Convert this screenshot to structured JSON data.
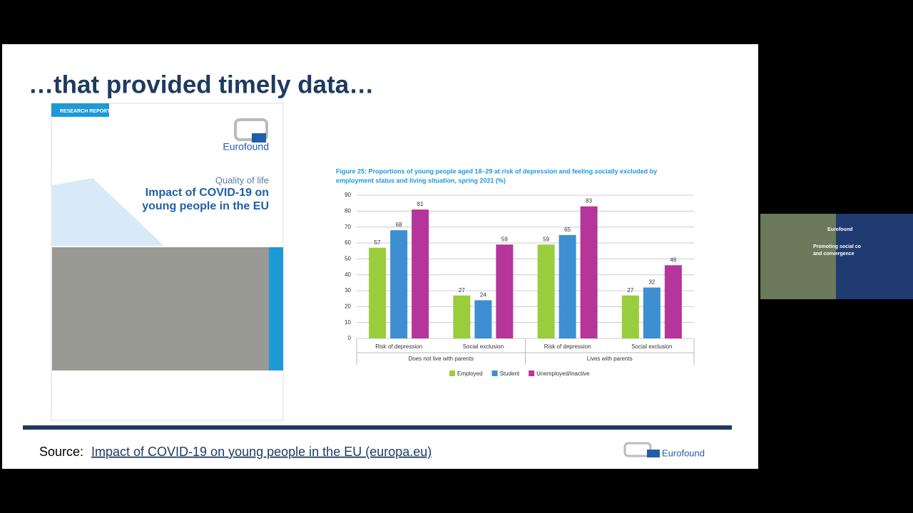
{
  "slide": {
    "title": "…that provided timely data…",
    "source_label": "Source:",
    "source_link": "Impact of COVID-19 on young people in the EU (europa.eu)",
    "footer_logo": "Eurofound"
  },
  "cover": {
    "tag": "RESEARCH REPORT",
    "logo": "Eurofound",
    "series": "Quality of life",
    "title_lines": [
      "Impact of COVID-19 on",
      "young people in the EU"
    ]
  },
  "video": {
    "banner_logo": "Eurofound",
    "banner_lines": [
      "Promoting social co",
      "and convergence"
    ]
  },
  "chart_data": {
    "type": "bar",
    "title_lines": [
      "Figure 25: Proportions of young people aged 18–29 at risk of depression and feeling socially excluded by",
      "employment status and living situation, spring 2021 (%)"
    ],
    "categories": [
      "Risk of depression",
      "Social exclusion",
      "Risk of depression",
      "Social exclusion"
    ],
    "groups": [
      "Does not live with parents",
      "Lives with parents"
    ],
    "series": [
      {
        "name": "Employed",
        "color": "#9acd3c",
        "values": [
          57,
          27,
          59,
          27
        ]
      },
      {
        "name": "Student",
        "color": "#3d8fd1",
        "values": [
          68,
          24,
          65,
          32
        ]
      },
      {
        "name": "Unemployed/inactive",
        "color": "#b5359a",
        "values": [
          81,
          59,
          83,
          46
        ]
      }
    ],
    "ylim": [
      0,
      90
    ],
    "yticks": [
      0,
      10,
      20,
      30,
      40,
      50,
      60,
      70,
      80,
      90
    ],
    "grid": true
  }
}
